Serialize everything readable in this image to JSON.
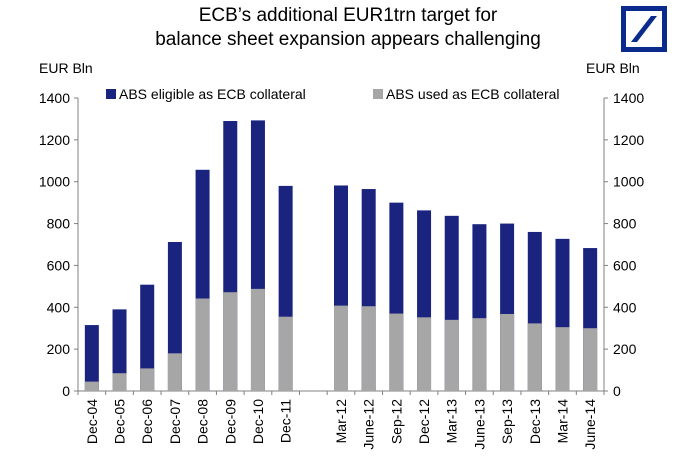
{
  "chart_data": {
    "type": "bar",
    "stacking": "overlay",
    "title": "ECB's additional EUR1trn target for balance sheet expansion appears challenging",
    "title_lines": [
      "ECB’s additional EUR1trn target for",
      "balance sheet expansion appears challenging"
    ],
    "ylabel_left": "EUR Bln",
    "ylabel_right": "EUR Bln",
    "ylim": [
      0,
      1400
    ],
    "yticks": [
      0,
      200,
      400,
      600,
      800,
      1000,
      1200,
      1400
    ],
    "categories": [
      "Dec-04",
      "Dec-05",
      "Dec-06",
      "Dec-07",
      "Dec-08",
      "Dec-09",
      "Dec-10",
      "Dec-11",
      "",
      "Mar-12",
      "June-12",
      "Sep-12",
      "Dec-12",
      "Mar-13",
      "June-13",
      "Sep-13",
      "Dec-13",
      "Mar-14",
      "June-14"
    ],
    "series": [
      {
        "name": "ABS eligible as ECB collateral",
        "color": "#1a237e",
        "values": [
          315,
          390,
          508,
          712,
          1057,
          1290,
          1293,
          980,
          null,
          982,
          965,
          900,
          863,
          837,
          797,
          800,
          760,
          727,
          683
        ]
      },
      {
        "name": "ABS used as ECB collateral",
        "color": "#a6a6a6",
        "values": [
          45,
          85,
          108,
          180,
          442,
          472,
          488,
          355,
          null,
          408,
          405,
          370,
          352,
          340,
          348,
          368,
          323,
          305,
          300
        ]
      }
    ],
    "legend": "top"
  },
  "logo": {
    "name": "brand-logo"
  }
}
